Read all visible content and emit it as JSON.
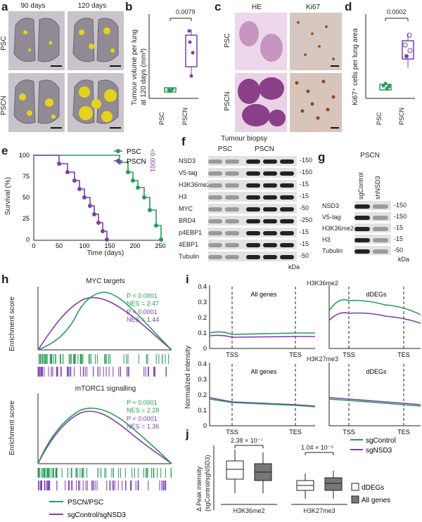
{
  "colors": {
    "green": "#2a9a5a",
    "purple": "#7a3fb0",
    "lung": "#8f8a93",
    "tumour": "#e6d21c"
  },
  "panel_labels": {
    "a": "a",
    "b": "b",
    "c": "c",
    "d": "d",
    "e": "e",
    "f": "f",
    "g": "g",
    "h": "h",
    "i": "i",
    "j": "j"
  },
  "panel_a": {
    "col1": "90 days",
    "col2": "120 days",
    "row1": "PSC",
    "row2": "PSCN"
  },
  "panel_b": {
    "ylabel1": "Tumour volume per lung",
    "ylabel2": "at 120 days (mm³)",
    "pvalue": "0.0079",
    "xcat1": "PSC",
    "xcat2": "PSCN"
  },
  "panel_c": {
    "col1": "HE",
    "col2": "Ki67",
    "row1": "PSC",
    "row2": "PSCN"
  },
  "panel_d": {
    "ylabel": "Ki67⁺ cells per lung area",
    "pvalue": "0.0002",
    "xcat1": "PSC",
    "xcat2": "PSCN"
  },
  "panel_e": {
    "ylabel": "Survival (%)",
    "xlabel": "Time (days)",
    "legend1": "PSC",
    "legend2": "PSCN",
    "pvalue": "<0.0001",
    "yticks": [
      "100",
      "75",
      "50",
      "25",
      "0"
    ],
    "xticks": [
      "0",
      "50",
      "100",
      "150",
      "200",
      "250"
    ]
  },
  "panel_f": {
    "title": "Tumour biopsy",
    "group1": "PSC",
    "group2": "PSCN",
    "rows": [
      "NSD3",
      "V5-tag",
      "H3K36me2",
      "H3",
      "MYC",
      "BRD4",
      "p4EBP1",
      "4EBP1",
      "Tubulin"
    ],
    "mw": [
      "-150",
      "-150",
      "-15",
      "-15",
      "-50",
      "-250",
      "-15",
      "-15",
      "-50"
    ],
    "unit": "kDa"
  },
  "panel_g": {
    "title": "PSCN",
    "lane1": "sgControl",
    "lane2": "shNSD3",
    "rows": [
      "NSD3",
      "V5-tag",
      "H3K36me2",
      "H3",
      "Tubulin"
    ],
    "mw": [
      "-150",
      "-150",
      "-15",
      "-15",
      "-50"
    ],
    "unit": "kDa"
  },
  "panel_h": {
    "ylabel": "Enrichment score",
    "top": {
      "title": "MYC targets",
      "p1": "P < 0.0001",
      "nes1": "NES = 2.47",
      "p2": "P < 0.0001",
      "nes2": "NES = 1.44"
    },
    "bottom": {
      "title": "mTORC1 signalling",
      "p1": "P < 0.0001",
      "nes1": "NES = 2.28",
      "p2": "P < 0.0001",
      "nes2": "NES = 1.36"
    },
    "legend1": "PSCN/PSC",
    "legend2": "sgControl/sgNSD3"
  },
  "panel_i": {
    "ylabel": "Normalized intensity",
    "yticks": [
      "0.4",
      "0.3",
      "0.2",
      "0.1",
      "0"
    ],
    "top_mark": "H3K36me2",
    "bottom_mark": "H3K27me3",
    "all": "All genes",
    "ddegs": "dDEGs",
    "tss": "TSS",
    "tes": "TES",
    "legend1": "sgControl",
    "legend2": "sgNSD3"
  },
  "panel_j": {
    "ylabel1": "Δ Peak intensity",
    "ylabel2": "(sgControl/sgNSD3)",
    "p1": "2.38 × 10⁻⁷",
    "p2": "1.04 × 10⁻⁵",
    "xcat1": "H3K36me2",
    "xcat2": "H3K27me3",
    "legend1": "dDEGs",
    "legend2": "All genes"
  }
}
